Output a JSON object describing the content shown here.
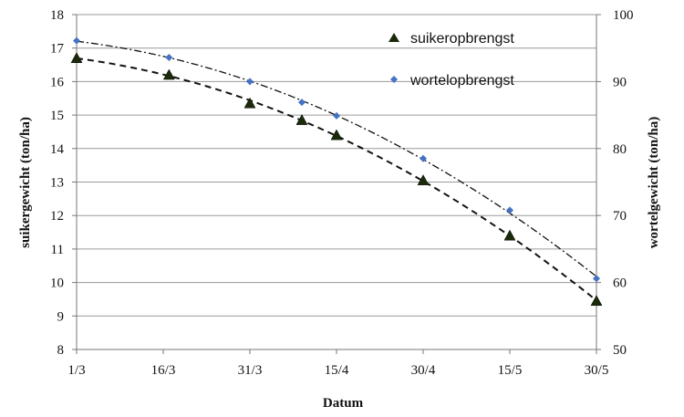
{
  "chart_data": {
    "type": "scatter",
    "x_ticks": [
      "1/3",
      "16/3",
      "31/3",
      "15/4",
      "30/4",
      "15/5",
      "30/5"
    ],
    "xlabel": "Datum",
    "ylabel_left": "suikergewicht (ton/ha)",
    "ylabel_right": "wortelgewicht (ton/ha)",
    "ylim_left": [
      8,
      18
    ],
    "yticks_left": [
      "8",
      "9",
      "10",
      "11",
      "12",
      "13",
      "14",
      "15",
      "16",
      "17",
      "18"
    ],
    "ylim_right": [
      50,
      100
    ],
    "yticks_right": [
      "50",
      "60",
      "70",
      "80",
      "90",
      "100"
    ],
    "grid": "horizontal",
    "legend_position": "top-right",
    "series": [
      {
        "name": "suikeropbrengst",
        "axis": "left",
        "marker": "triangle",
        "color": "#1a2a0a",
        "trendline": "dashed",
        "x": [
          "1/3",
          "17/3",
          "31/3",
          "9/4",
          "15/4",
          "30/4",
          "15/5",
          "30/5"
        ],
        "y": [
          16.7,
          16.2,
          15.35,
          14.85,
          14.4,
          13.05,
          11.4,
          9.45
        ]
      },
      {
        "name": "wortelopbrengst",
        "axis": "right",
        "marker": "diamond",
        "color": "#4472c4",
        "trendline": "dash-dot",
        "x": [
          "1/3",
          "17/3",
          "31/3",
          "9/4",
          "15/4",
          "30/4",
          "15/5",
          "30/5"
        ],
        "y": [
          96.1,
          93.6,
          90.0,
          86.9,
          84.9,
          78.5,
          70.8,
          60.6
        ]
      }
    ]
  }
}
